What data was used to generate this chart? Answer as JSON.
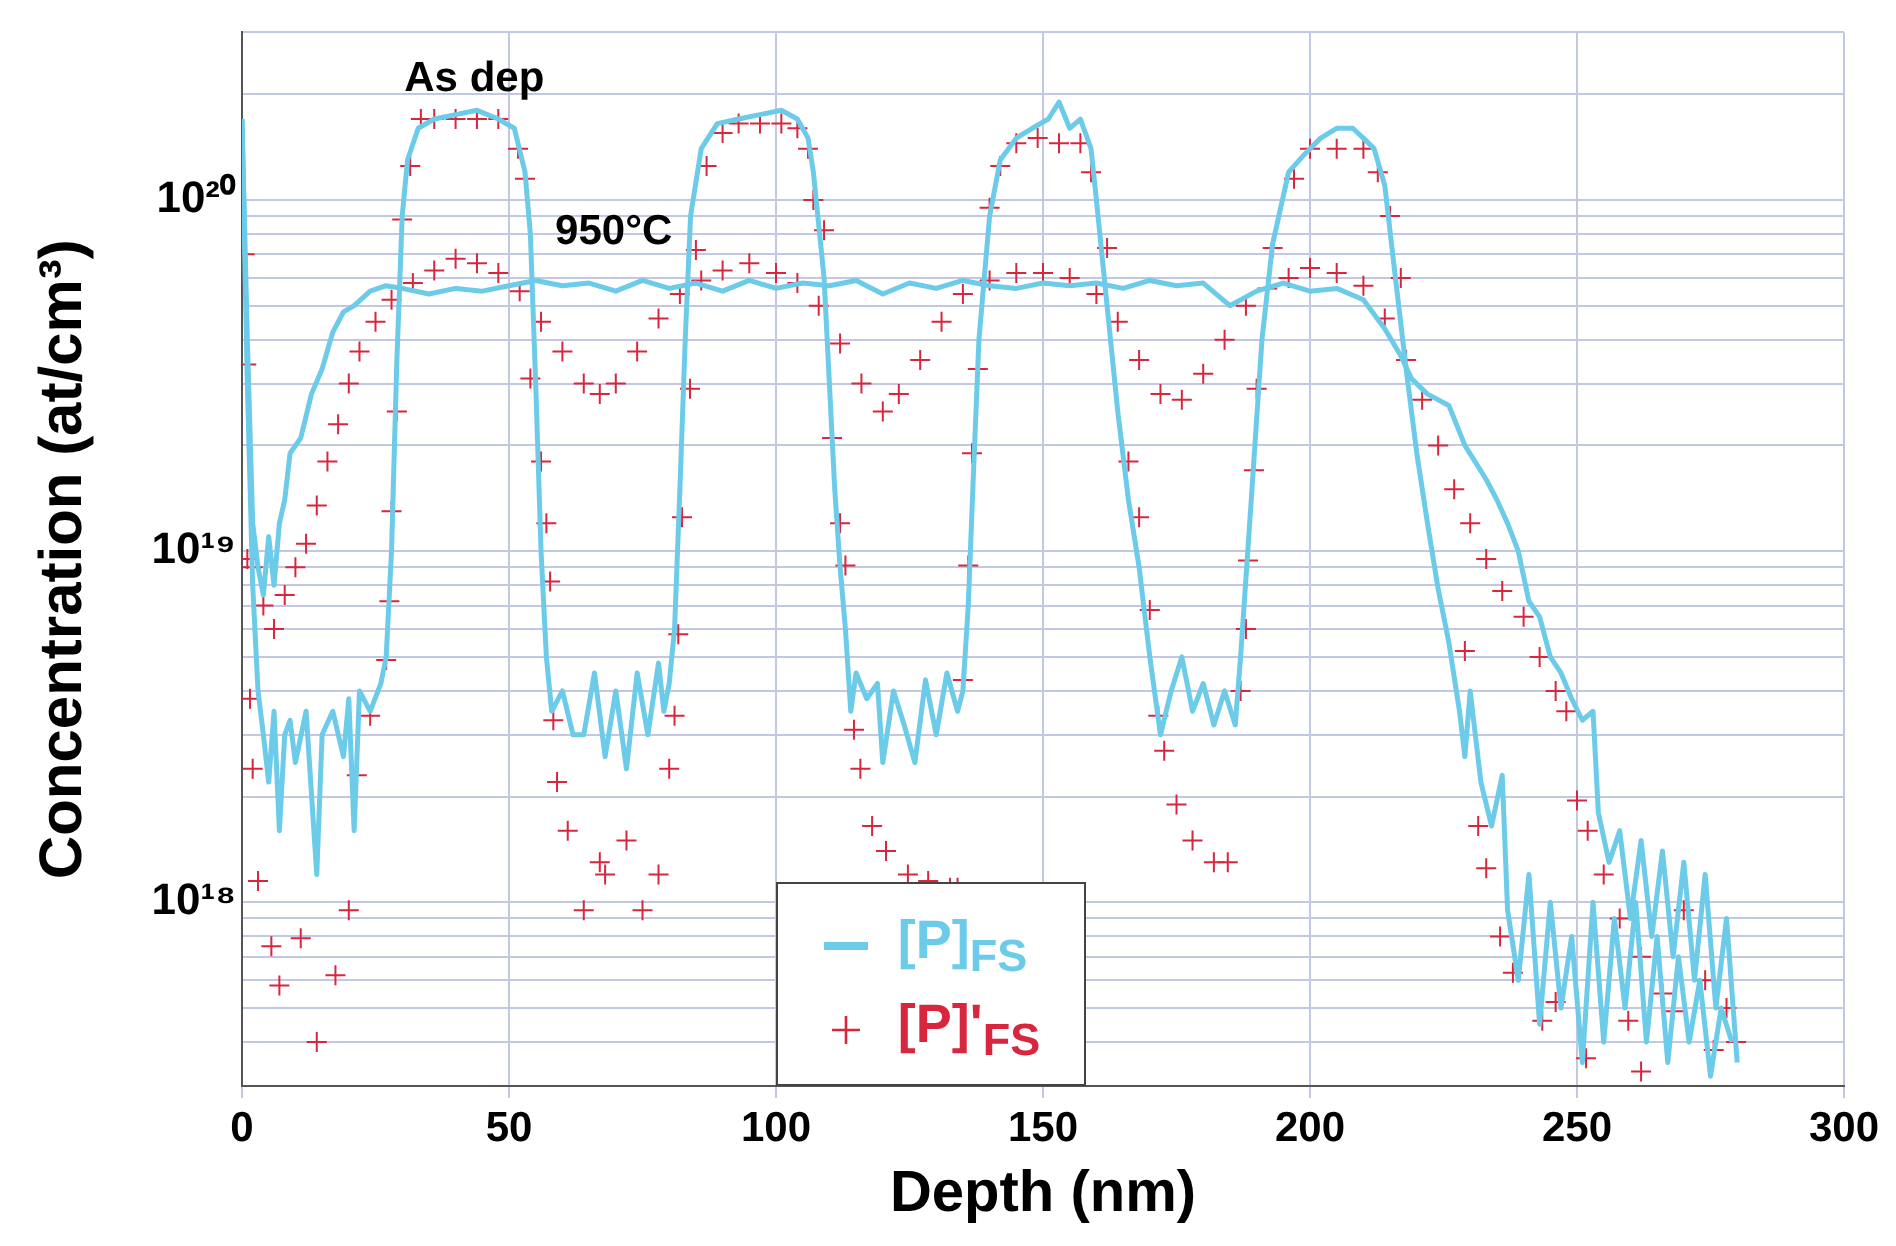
{
  "chart_data": {
    "type": "line",
    "xlabel": "Depth (nm)",
    "ylabel": "Concentration (at/cm³)",
    "xlim": [
      0,
      300
    ],
    "xticks": [
      0,
      50,
      100,
      150,
      200,
      250,
      300
    ],
    "ylim": [
      3e+17,
      3e+20
    ],
    "log": "y",
    "grid": true,
    "legend": "bottom",
    "yticks": [
      {
        "value": 4e+17,
        "label": null
      },
      {
        "value": 5e+17,
        "label": null
      },
      {
        "value": 6e+17,
        "label": null
      },
      {
        "value": 7e+17,
        "label": null
      },
      {
        "value": 8e+17,
        "label": null
      },
      {
        "value": 9e+17,
        "label": null
      },
      {
        "value": 1e+18,
        "label": "10¹⁸"
      },
      {
        "value": 2e+18,
        "label": null
      },
      {
        "value": 3e+18,
        "label": null
      },
      {
        "value": 4e+18,
        "label": null
      },
      {
        "value": 5e+18,
        "label": null
      },
      {
        "value": 6e+18,
        "label": null
      },
      {
        "value": 7e+18,
        "label": null
      },
      {
        "value": 8e+18,
        "label": null
      },
      {
        "value": 9e+18,
        "label": null
      },
      {
        "value": 1e+19,
        "label": "10¹⁹"
      },
      {
        "value": 2e+19,
        "label": null
      },
      {
        "value": 3e+19,
        "label": null
      },
      {
        "value": 4e+19,
        "label": null
      },
      {
        "value": 5e+19,
        "label": null
      },
      {
        "value": 6e+19,
        "label": null
      },
      {
        "value": 7e+19,
        "label": null
      },
      {
        "value": 8e+19,
        "label": null
      },
      {
        "value": 9e+19,
        "label": null
      },
      {
        "value": 1e+20,
        "label": "10²⁰"
      },
      {
        "value": 2e+20,
        "label": null
      },
      {
        "value": 3e+20,
        "label": null
      }
    ],
    "annotations": [
      "As dep",
      "950°C"
    ],
    "series": [
      {
        "name": "[P]$_{FS}$",
        "type": "line",
        "color": "#6ccbe8",
        "line_style": "solid",
        "x": [
          0,
          1,
          2,
          3,
          4,
          5,
          6,
          7,
          8,
          9,
          10,
          12,
          14,
          15,
          17,
          19,
          20,
          21,
          22,
          24,
          26,
          27,
          28,
          29,
          30,
          31,
          33,
          36,
          40,
          44,
          48,
          51,
          53,
          54,
          55,
          56,
          57,
          58,
          60,
          62,
          64,
          66,
          68,
          70,
          72,
          74,
          76,
          78,
          79,
          80,
          81,
          82,
          83,
          84,
          86,
          89,
          93,
          97,
          101,
          104,
          106,
          107,
          109,
          110,
          111,
          112,
          113,
          114,
          115,
          117,
          119,
          120,
          122,
          124,
          126,
          128,
          130,
          132,
          134,
          135,
          136,
          137,
          138,
          140,
          142,
          145,
          148,
          151,
          153,
          155,
          157,
          159,
          160,
          162,
          164,
          166,
          168,
          170,
          172,
          174,
          176,
          178,
          180,
          182,
          184,
          186,
          187,
          189,
          191,
          193,
          196,
          199,
          202,
          205,
          208,
          210,
          212,
          214,
          216,
          218,
          220,
          222,
          224,
          226,
          228,
          229,
          230,
          232,
          234,
          236,
          237,
          239,
          241,
          243,
          245,
          247,
          249,
          251,
          253,
          255,
          257,
          259,
          261,
          263,
          265,
          267,
          269,
          271,
          273,
          275,
          277,
          279
        ],
        "values": [
          1.7e+20,
          3e+19,
          8e+18,
          4e+18,
          3e+18,
          2.2e+18,
          3.5e+18,
          1.6e+18,
          3e+18,
          3.3e+18,
          2.5e+18,
          3.5e+18,
          1.2e+18,
          3e+18,
          3.5e+18,
          2.6e+18,
          3.8e+18,
          1.6e+18,
          4e+18,
          3.5e+18,
          4.2e+18,
          5e+18,
          1e+19,
          3.5e+19,
          9e+19,
          1.3e+20,
          1.6e+20,
          1.7e+20,
          1.75e+20,
          1.8e+20,
          1.7e+20,
          1.6e+20,
          1.2e+20,
          8e+19,
          3e+19,
          1e+19,
          5e+18,
          3.5e+18,
          4e+18,
          3e+18,
          3e+18,
          4.5e+18,
          2.6e+18,
          4e+18,
          2.4e+18,
          4.5e+18,
          3e+18,
          4.8e+18,
          3.5e+18,
          4.2e+18,
          6e+18,
          1.5e+19,
          4e+19,
          9e+19,
          1.4e+20,
          1.65e+20,
          1.7e+20,
          1.75e+20,
          1.8e+20,
          1.7e+20,
          1.5e+20,
          1.2e+20,
          6e+19,
          3e+19,
          1.5e+19,
          9e+18,
          6e+18,
          3.5e+18,
          4.5e+18,
          3.8e+18,
          4.2e+18,
          2.5e+18,
          4e+18,
          3.2e+18,
          2.5e+18,
          4.3e+18,
          3e+18,
          4.5e+18,
          3.5e+18,
          4e+18,
          7e+18,
          1.7e+19,
          4e+19,
          9e+19,
          1.3e+20,
          1.5e+20,
          1.6e+20,
          1.7e+20,
          1.9e+20,
          1.6e+20,
          1.7e+20,
          1.4e+20,
          1e+20,
          5e+19,
          2.5e+19,
          1.4e+19,
          9e+18,
          5e+18,
          3e+18,
          4e+18,
          5e+18,
          3.5e+18,
          4.2e+18,
          3.2e+18,
          4e+18,
          3.2e+18,
          5e+18,
          1.4e+19,
          4e+19,
          7.5e+19,
          1.2e+20,
          1.35e+20,
          1.5e+20,
          1.6e+20,
          1.6e+20,
          1.5e+20,
          1.4e+20,
          1.1e+20,
          6e+19,
          3.3e+19,
          1.9e+19,
          1.2e+19,
          7.8e+18,
          5.5e+18,
          3.5e+18,
          2.6e+18,
          4e+18,
          2.2e+18,
          1.65e+18,
          2.3e+18,
          9.5e+17,
          6e+17,
          1.2e+18,
          4.5e+17,
          1e+18,
          5e+17,
          8e+17,
          3.5e+17,
          1e+18,
          4e+17,
          9e+17,
          5e+17,
          1e+18,
          4e+17,
          8e+17,
          3.5e+17,
          7e+17,
          4e+17,
          6e+17,
          3.2e+17,
          5e+17,
          4e+17
        ]
      },
      {
        "type": "line",
        "color": "#6ccbe8",
        "line_style": "solid",
        "x": [
          0,
          1,
          2,
          3,
          4,
          5,
          6,
          7,
          8,
          9,
          11,
          13,
          15,
          17,
          19,
          21,
          24,
          27,
          30,
          35,
          40,
          45,
          50,
          55,
          60,
          65,
          70,
          75,
          80,
          85,
          90,
          95,
          100,
          105,
          110,
          115,
          120,
          125,
          130,
          135,
          140,
          145,
          150,
          155,
          160,
          165,
          170,
          175,
          180,
          185,
          190,
          195,
          200,
          205,
          210,
          214,
          217,
          219,
          222,
          226,
          229,
          233,
          235,
          237,
          239,
          241,
          243,
          245,
          247,
          249,
          251,
          253,
          254,
          256,
          258,
          260,
          262,
          264,
          266,
          268,
          270,
          272,
          274,
          276,
          278,
          280
        ],
        "values": [
          1.7e+20,
          4e+19,
          1.2e+19,
          9e+18,
          7.5e+18,
          1.1e+19,
          8e+18,
          1.2e+19,
          1.4e+19,
          1.9e+19,
          2.1e+19,
          2.8e+19,
          3.3e+19,
          4.2e+19,
          4.8e+19,
          5e+19,
          5.5e+19,
          5.7e+19,
          5.6e+19,
          5.4e+19,
          5.6e+19,
          5.5e+19,
          5.7e+19,
          5.9e+19,
          5.7e+19,
          5.8e+19,
          5.5e+19,
          5.9e+19,
          5.6e+19,
          5.8e+19,
          5.5e+19,
          5.9e+19,
          5.6e+19,
          5.8e+19,
          5.7e+19,
          5.9e+19,
          5.4e+19,
          5.8e+19,
          5.6e+19,
          5.9e+19,
          5.7e+19,
          5.6e+19,
          5.8e+19,
          5.7e+19,
          5.8e+19,
          5.6e+19,
          5.9e+19,
          5.7e+19,
          5.8e+19,
          5e+19,
          5.5e+19,
          5.8e+19,
          5.5e+19,
          5.6e+19,
          5.2e+19,
          4.3e+19,
          3.6e+19,
          3.1e+19,
          2.8e+19,
          2.6e+19,
          2e+19,
          1.6e+19,
          1.4e+19,
          1.2e+19,
          1e+19,
          7.2e+18,
          6.5e+18,
          5e+18,
          4.5e+18,
          3.8e+18,
          3.3e+18,
          3.5e+18,
          1.8e+18,
          1.3e+18,
          1.6e+18,
          9e+17,
          1.5e+18,
          8e+17,
          1.4e+18,
          7e+17,
          1.3e+18,
          6e+17,
          1.2e+18,
          5e+17,
          9e+17,
          3.5e+17
        ]
      },
      {
        "name": "[P]'$_{FS}$",
        "type": "scatter",
        "color": "#d7263d",
        "marker": "cross",
        "x": [
          0.5,
          0.8,
          2,
          4,
          6,
          8,
          10,
          12,
          14,
          16,
          18,
          20,
          22,
          25,
          28,
          32,
          36,
          40,
          44,
          48,
          52,
          56,
          60,
          64,
          67,
          70,
          74,
          78,
          82,
          86,
          90,
          95,
          100,
          104,
          108,
          112,
          116,
          120,
          123,
          127,
          131,
          135,
          140,
          145,
          150,
          155,
          160,
          164,
          168,
          172,
          176,
          180,
          184,
          188,
          192,
          196,
          200,
          205,
          210,
          214,
          218,
          221,
          224,
          227,
          230,
          233,
          236,
          240,
          243,
          246,
          248,
          250,
          252,
          255,
          258,
          262,
          266,
          270,
          274,
          278,
          1,
          1.5,
          2,
          3,
          5.5,
          7,
          11,
          14,
          17.5,
          20,
          21.5,
          24,
          27,
          27.6,
          28,
          29,
          30,
          31.5,
          33.5,
          36,
          40,
          44,
          48,
          51.7,
          53,
          54,
          56,
          57,
          57.7,
          58.3,
          59,
          61,
          64,
          67,
          68,
          72,
          75,
          78,
          80,
          81,
          81.7,
          82.4,
          83.9,
          85,
          87,
          90,
          93,
          97,
          101,
          104,
          106,
          107,
          109,
          110.5,
          112,
          113,
          114.6,
          115.8,
          118,
          120.6,
          124.7,
          128.5,
          132.6,
          134,
          135,
          136,
          136.7,
          137.8,
          140,
          142,
          145,
          149,
          153,
          157,
          159,
          162,
          166,
          168,
          170,
          171.6,
          172.7,
          175,
          178,
          182,
          184.6,
          187,
          188,
          188.4,
          189.5,
          190,
          193,
          197,
          200,
          205,
          210,
          212.7,
          215,
          217,
          229,
          231.5,
          233,
          235.6,
          238,
          243.5,
          246,
          251.7,
          259.6,
          262,
          268,
          275.6,
          279.8
        ],
        "values": [
          7e+19,
          3.4e+19,
          9e+18,
          7e+18,
          6e+18,
          7.5e+18,
          9e+18,
          1.05e+19,
          1.35e+19,
          1.8e+19,
          2.3e+19,
          3e+19,
          3.7e+19,
          4.5e+19,
          5.2e+19,
          5.8e+19,
          6.3e+19,
          6.8e+19,
          6.6e+19,
          6.2e+19,
          5.5e+19,
          4.5e+19,
          3.7e+19,
          3e+19,
          2.8e+19,
          3e+19,
          3.7e+19,
          4.6e+19,
          5.4e+19,
          5.9e+19,
          6.3e+19,
          6.6e+19,
          6.2e+19,
          5.8e+19,
          5e+19,
          3.9e+19,
          3e+19,
          2.5e+19,
          2.8e+19,
          3.5e+19,
          4.5e+19,
          5.4e+19,
          5.9e+19,
          6.2e+19,
          6.2e+19,
          6e+19,
          5.4e+19,
          4.5e+19,
          3.5e+19,
          2.8e+19,
          2.7e+19,
          3.2e+19,
          4e+19,
          5e+19,
          5.6e+19,
          6e+19,
          6.4e+19,
          6.2e+19,
          5.7e+19,
          4.6e+19,
          3.5e+19,
          2.7e+19,
          2e+19,
          1.5e+19,
          1.2e+19,
          9.5e+18,
          7.7e+18,
          6.5e+18,
          5e+18,
          4e+18,
          3.5e+18,
          1.95e+18,
          1.6e+18,
          1.2e+18,
          9e+17,
          7e+17,
          5.5e+17,
          9.5e+17,
          6e+17,
          5e+17,
          9.5e+18,
          3.8e+18,
          2.4e+18,
          1.15e+18,
          7.5e+17,
          5.8e+17,
          7.9e+17,
          4e+17,
          6.2e+17,
          9.5e+17,
          2.3e+18,
          3.4e+18,
          4.9e+18,
          7.2e+18,
          1.3e+19,
          2.5e+19,
          8.8e+19,
          1.25e+20,
          1.7e+20,
          1.7e+20,
          1.7e+20,
          1.7e+20,
          1.7e+20,
          1.4e+20,
          1.15e+20,
          3.1e+19,
          1.8e+19,
          1.2e+19,
          8.2e+18,
          3.3e+18,
          2.2e+18,
          1.6e+18,
          9.5e+17,
          1.3e+18,
          1.2e+18,
          1.5e+18,
          9.5e+17,
          1.2e+18,
          2.4e+18,
          3.4e+18,
          5.8e+18,
          1.25e+19,
          2.9e+19,
          7.2e+19,
          1.25e+20,
          1.55e+20,
          1.65e+20,
          1.65e+20,
          1.65e+20,
          1.6e+20,
          1.4e+20,
          1e+20,
          8.2e+19,
          2.1e+19,
          1.2e+19,
          9.1e+18,
          3.1e+18,
          2.4e+18,
          1.65e+18,
          1.4e+18,
          1.2e+18,
          1.15e+18,
          1.1e+18,
          1.1e+18,
          4.3e+18,
          9.1e+18,
          1.9e+19,
          3.3e+19,
          9.5e+19,
          1.25e+20,
          1.45e+20,
          1.5e+20,
          1.45e+20,
          1.45e+20,
          1.2e+20,
          7.3e+19,
          1.8e+19,
          1.25e+19,
          6.8e+18,
          3.4e+18,
          2.7e+18,
          1.9e+18,
          1.5e+18,
          1.3e+18,
          1.3e+18,
          4e+18,
          6e+18,
          9.4e+18,
          1.7e+19,
          2.9e+19,
          7.3e+19,
          1.15e+20,
          1.4e+20,
          1.4e+20,
          1.4e+20,
          1.2e+20,
          9e+19,
          6e+19,
          5.2e+18,
          1.65e+18,
          1.25e+18,
          8e+17,
          6.3e+17,
          4.6e+17,
          5.2e+17,
          3.6e+17,
          4.6e+17,
          3.3e+17,
          4.9e+17,
          3.8e+17,
          4e+17
        ]
      }
    ]
  }
}
